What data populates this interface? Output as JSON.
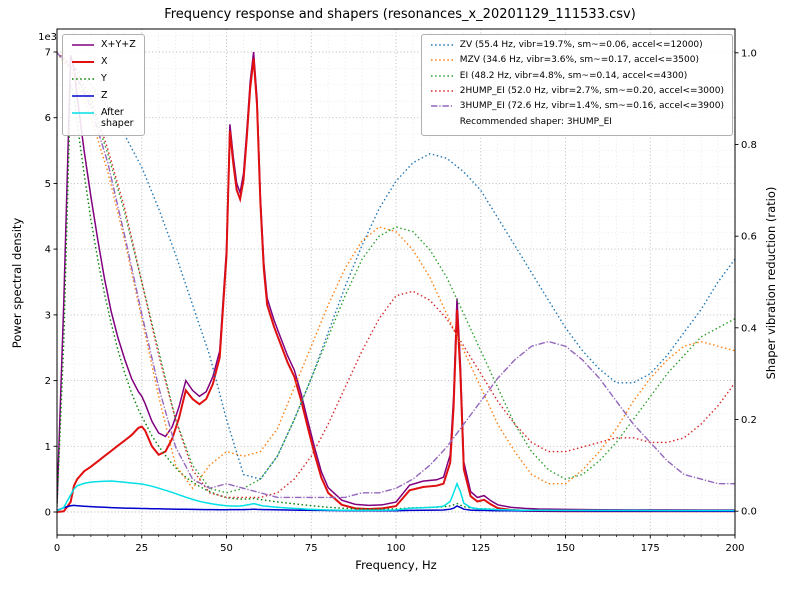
{
  "chart_data": {
    "type": "line",
    "title": "Frequency response and shapers (resonances_x_20201129_111533.csv)",
    "xlabel": "Frequency, Hz",
    "ylabel_left": "Power spectral density",
    "ylabel_right": "Shaper vibration reduction (ratio)",
    "grid": "both-major-and-minor",
    "x_axis": {
      "lim": [
        0,
        200
      ],
      "ticks": [
        0,
        25,
        50,
        75,
        100,
        125,
        150,
        175,
        200
      ],
      "minor_step": 5
    },
    "left_axis": {
      "offset_label": "1e3",
      "ticks": [
        0,
        1,
        2,
        3,
        4,
        5,
        6,
        7
      ],
      "unit_scale": 1000,
      "lim": [
        -350,
        7350
      ]
    },
    "right_axis": {
      "ticks": [
        "0.0",
        "0.2",
        "0.4",
        "0.6",
        "0.8",
        "1.0"
      ],
      "lim": [
        -0.052,
        1.052
      ]
    },
    "psd": {
      "x": [
        0,
        2,
        4,
        5,
        6,
        8,
        10,
        12,
        14,
        16,
        18,
        20,
        22,
        24,
        25,
        26,
        28,
        30,
        32,
        34,
        36,
        38,
        40,
        42,
        44,
        46,
        48,
        50,
        51,
        52,
        53,
        54,
        55,
        56,
        57,
        58,
        59,
        60,
        61,
        62,
        64,
        66,
        68,
        70,
        72,
        74,
        76,
        78,
        80,
        84,
        88,
        92,
        96,
        100,
        104,
        108,
        112,
        114,
        116,
        117,
        118,
        119,
        120,
        122,
        124,
        126,
        128,
        130,
        134,
        138,
        142,
        150,
        160,
        170,
        180,
        190,
        200
      ],
      "series": [
        {
          "name": "xyz",
          "label": "X+Y+Z",
          "color": "#800080",
          "style": "solid",
          "width": 1.5,
          "values": [
            120,
            3200,
            6950,
            6750,
            6300,
            5500,
            4800,
            4150,
            3550,
            3050,
            2650,
            2320,
            2030,
            1830,
            1760,
            1650,
            1380,
            1200,
            1150,
            1300,
            1600,
            2000,
            1850,
            1760,
            1830,
            2060,
            2450,
            4000,
            5900,
            5400,
            5000,
            4860,
            5150,
            5800,
            6550,
            7000,
            6300,
            4800,
            3800,
            3250,
            2920,
            2650,
            2380,
            2160,
            1800,
            1380,
            980,
            610,
            370,
            180,
            115,
            100,
            110,
            150,
            410,
            470,
            490,
            530,
            870,
            1750,
            3250,
            2250,
            760,
            310,
            220,
            250,
            170,
            110,
            70,
            55,
            45,
            40,
            35,
            32,
            32,
            30,
            30
          ]
        },
        {
          "name": "x",
          "label": "X",
          "color": "#e01010",
          "style": "solid",
          "width": 2,
          "values": [
            0,
            10,
            150,
            400,
            500,
            620,
            690,
            770,
            850,
            930,
            1010,
            1090,
            1170,
            1280,
            1300,
            1240,
            1000,
            870,
            920,
            1120,
            1430,
            1850,
            1720,
            1640,
            1720,
            1950,
            2350,
            3900,
            5800,
            5300,
            4900,
            4760,
            5050,
            5700,
            6450,
            6900,
            6200,
            4700,
            3700,
            3150,
            2820,
            2550,
            2280,
            2060,
            1700,
            1280,
            880,
            520,
            290,
            110,
            55,
            45,
            55,
            90,
            330,
            380,
            400,
            430,
            750,
            1600,
            3080,
            2100,
            650,
            240,
            160,
            185,
            115,
            60,
            30,
            20,
            15,
            12,
            10,
            10,
            10,
            10,
            10
          ]
        },
        {
          "name": "y",
          "label": "Y",
          "color": "#008000",
          "style": "dotted",
          "width": 1.4,
          "values": [
            80,
            2600,
            6500,
            6350,
            5900,
            5150,
            4450,
            3850,
            3320,
            2870,
            2460,
            2110,
            1810,
            1560,
            1450,
            1360,
            1160,
            1000,
            860,
            730,
            620,
            530,
            455,
            390,
            335,
            290,
            250,
            220,
            210,
            205,
            200,
            198,
            197,
            198,
            200,
            205,
            198,
            190,
            182,
            175,
            160,
            148,
            136,
            125,
            113,
            102,
            92,
            82,
            73,
            58,
            48,
            42,
            42,
            47,
            62,
            68,
            72,
            78,
            95,
            110,
            130,
            105,
            82,
            62,
            52,
            50,
            46,
            40,
            32,
            27,
            24,
            21,
            18,
            16,
            15,
            15,
            15
          ]
        },
        {
          "name": "z",
          "label": "Z",
          "color": "#0000cd",
          "style": "solid",
          "width": 1.5,
          "values": [
            25,
            65,
            95,
            100,
            96,
            88,
            82,
            76,
            71,
            67,
            63,
            60,
            57,
            55,
            54,
            53,
            50,
            48,
            46,
            44,
            42,
            41,
            39,
            38,
            37,
            36,
            35,
            35,
            36,
            36,
            36,
            37,
            37,
            38,
            40,
            42,
            40,
            38,
            37,
            36,
            34,
            32,
            30,
            29,
            27,
            26,
            25,
            24,
            23,
            21,
            20,
            19,
            19,
            20,
            24,
            26,
            29,
            31,
            42,
            58,
            92,
            70,
            42,
            29,
            25,
            24,
            22,
            20,
            18,
            17,
            16,
            15,
            14,
            13,
            13,
            12,
            12
          ]
        },
        {
          "name": "after_shaper",
          "label": "After\nshaper",
          "color": "#00e0e5",
          "style": "solid",
          "width": 1.5,
          "values": [
            15,
            70,
            260,
            350,
            400,
            435,
            455,
            462,
            468,
            472,
            463,
            452,
            442,
            432,
            426,
            415,
            392,
            362,
            330,
            298,
            262,
            225,
            192,
            163,
            140,
            122,
            106,
            96,
            93,
            91,
            90,
            92,
            97,
            106,
            116,
            126,
            116,
            101,
            92,
            86,
            76,
            68,
            61,
            55,
            49,
            43,
            38,
            34,
            31,
            27,
            25,
            25,
            26,
            31,
            56,
            66,
            76,
            88,
            160,
            290,
            430,
            310,
            135,
            68,
            50,
            46,
            41,
            36,
            31,
            28,
            27,
            25,
            24,
            24,
            23,
            23,
            23
          ]
        }
      ]
    },
    "shapers": {
      "x": [
        0,
        5,
        10,
        15,
        20,
        25,
        30,
        35,
        40,
        45,
        50,
        55,
        60,
        65,
        70,
        75,
        80,
        85,
        90,
        95,
        100,
        105,
        110,
        115,
        120,
        125,
        130,
        135,
        140,
        145,
        150,
        155,
        160,
        165,
        170,
        175,
        180,
        185,
        190,
        195,
        200
      ],
      "series": [
        {
          "name": "zv",
          "label": "ZV (55.4 Hz, vibr=19.7%, sm~=0.06, accel<=12000)",
          "color": "#1f77b4",
          "style": "dotted",
          "width": 1.4,
          "values": [
            1.0,
            0.97,
            0.93,
            0.88,
            0.82,
            0.75,
            0.66,
            0.56,
            0.45,
            0.34,
            0.2,
            0.08,
            0.07,
            0.12,
            0.2,
            0.29,
            0.39,
            0.49,
            0.58,
            0.66,
            0.72,
            0.76,
            0.78,
            0.77,
            0.74,
            0.7,
            0.64,
            0.58,
            0.52,
            0.46,
            0.4,
            0.35,
            0.31,
            0.28,
            0.28,
            0.3,
            0.34,
            0.39,
            0.44,
            0.5,
            0.55
          ]
        },
        {
          "name": "mzv",
          "label": "MZV (34.6 Hz, vibr=3.6%, sm~=0.17, accel<=3500)",
          "color": "#ff7f0e",
          "style": "dotted",
          "width": 1.4,
          "values": [
            1.0,
            0.95,
            0.86,
            0.74,
            0.59,
            0.42,
            0.25,
            0.1,
            0.05,
            0.1,
            0.13,
            0.12,
            0.13,
            0.18,
            0.27,
            0.36,
            0.45,
            0.53,
            0.59,
            0.62,
            0.61,
            0.57,
            0.51,
            0.43,
            0.35,
            0.27,
            0.19,
            0.13,
            0.08,
            0.06,
            0.06,
            0.09,
            0.13,
            0.18,
            0.24,
            0.29,
            0.33,
            0.36,
            0.37,
            0.36,
            0.35
          ]
        },
        {
          "name": "ei",
          "label": "EI (48.2 Hz, vibr=4.8%, sm~=0.14, accel<=4300)",
          "color": "#2ca02c",
          "style": "dotted",
          "width": 1.4,
          "values": [
            1.0,
            0.96,
            0.89,
            0.78,
            0.65,
            0.5,
            0.35,
            0.2,
            0.1,
            0.05,
            0.04,
            0.05,
            0.07,
            0.12,
            0.2,
            0.29,
            0.38,
            0.47,
            0.55,
            0.6,
            0.62,
            0.61,
            0.57,
            0.51,
            0.43,
            0.35,
            0.27,
            0.19,
            0.13,
            0.09,
            0.07,
            0.08,
            0.11,
            0.15,
            0.2,
            0.25,
            0.3,
            0.34,
            0.38,
            0.4,
            0.42
          ]
        },
        {
          "name": "2hump_ei",
          "label": "2HUMP_EI (52.0 Hz, vibr=2.7%, sm~=0.20, accel<=3000)",
          "color": "#d62728",
          "style": "dotted",
          "width": 1.4,
          "values": [
            1.0,
            0.97,
            0.9,
            0.79,
            0.66,
            0.5,
            0.34,
            0.2,
            0.09,
            0.04,
            0.03,
            0.03,
            0.03,
            0.04,
            0.07,
            0.12,
            0.19,
            0.27,
            0.35,
            0.42,
            0.47,
            0.48,
            0.46,
            0.42,
            0.36,
            0.3,
            0.24,
            0.19,
            0.15,
            0.13,
            0.13,
            0.14,
            0.15,
            0.16,
            0.16,
            0.15,
            0.15,
            0.16,
            0.19,
            0.23,
            0.28
          ]
        },
        {
          "name": "3hump_ei",
          "label": "3HUMP_EI (72.6 Hz, vibr=1.4%, sm~=0.16, accel<=3900)",
          "color": "#9467bd",
          "style": "dashdot",
          "width": 1.4,
          "values": [
            1.0,
            0.96,
            0.88,
            0.76,
            0.6,
            0.43,
            0.27,
            0.14,
            0.07,
            0.05,
            0.06,
            0.05,
            0.04,
            0.03,
            0.03,
            0.03,
            0.03,
            0.03,
            0.04,
            0.04,
            0.05,
            0.07,
            0.1,
            0.14,
            0.19,
            0.24,
            0.29,
            0.33,
            0.36,
            0.37,
            0.36,
            0.33,
            0.29,
            0.24,
            0.19,
            0.15,
            0.11,
            0.08,
            0.07,
            0.06,
            0.06
          ]
        }
      ],
      "recommended_label": "Recommended shaper: 3HUMP_EI"
    }
  }
}
